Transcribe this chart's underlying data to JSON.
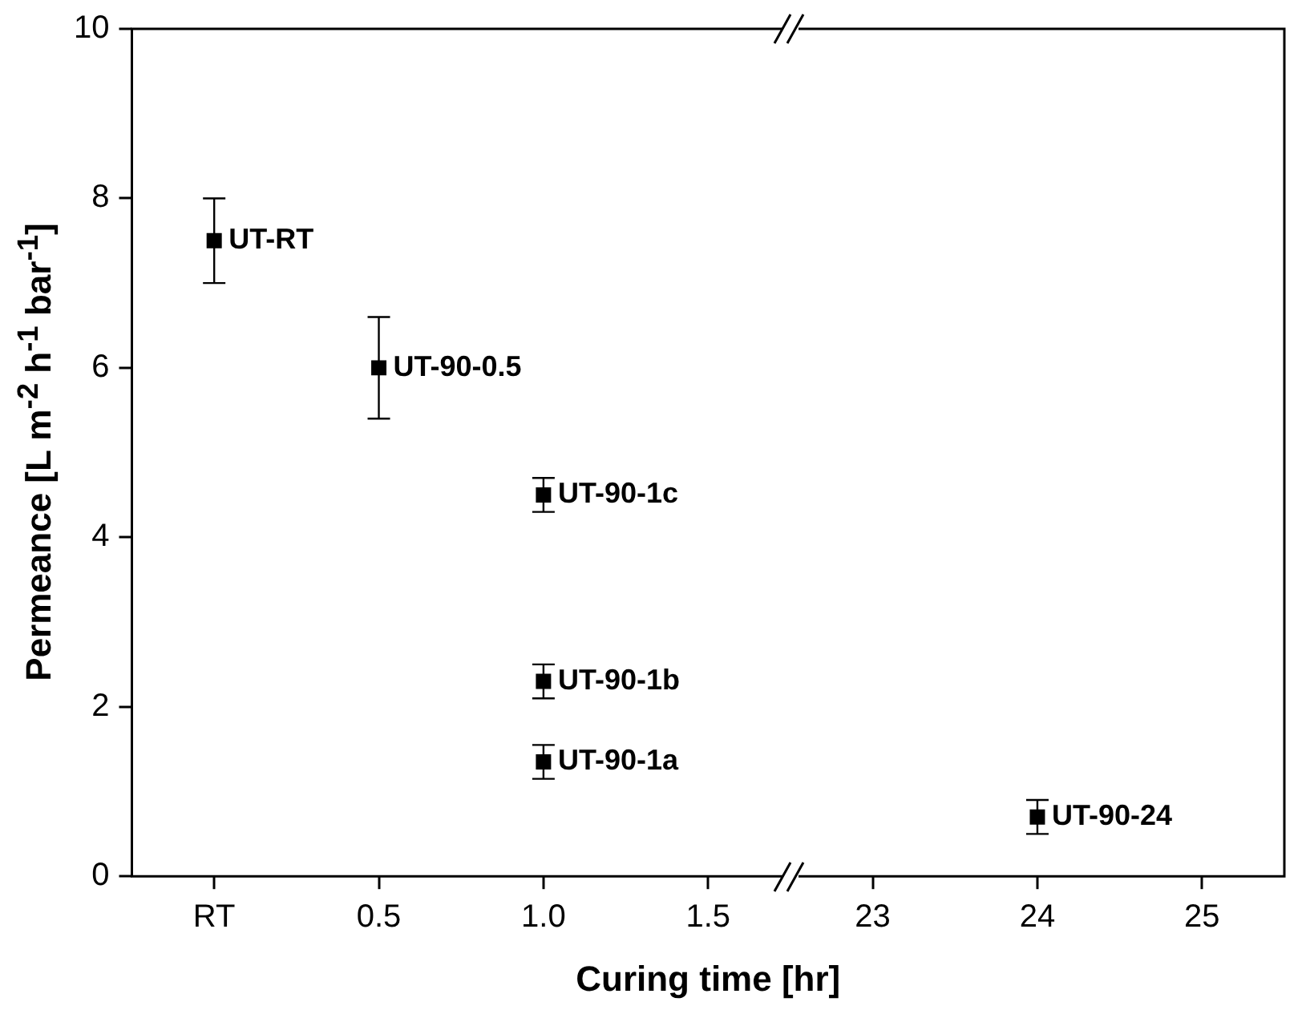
{
  "chart_data": {
    "type": "scatter",
    "xlabel": "Curing time [hr]",
    "ylabel": "Permeance [L m$^{-2}$ h$^{-1}$ bar$^{-1}$]",
    "categories": [
      "RT",
      "0.5",
      "1.0",
      "1.5",
      "23",
      "24",
      "25"
    ],
    "series": [
      {
        "color": "#000000",
        "x": [
          "RT",
          "0.5",
          "1.0",
          "1.0",
          "1.0",
          "24"
        ],
        "values": [
          7.5,
          6.0,
          4.5,
          2.3,
          1.35,
          0.7
        ],
        "errors": [
          0.5,
          0.6,
          0.2,
          0.2,
          0.2,
          0.2
        ]
      }
    ],
    "ylim": [
      0,
      10
    ],
    "yticks": [
      0,
      2,
      4,
      6,
      8,
      10
    ],
    "marker": "square",
    "annotations": [
      {
        "text": "UT-RT",
        "x": "RT",
        "y": 7.5
      },
      {
        "text": "UT-90-0.5",
        "x": "0.5",
        "y": 6.0
      },
      {
        "text": "UT-90-1c",
        "x": "1.0",
        "y": 4.5
      },
      {
        "text": "UT-90-1b",
        "x": "1.0",
        "y": 2.3
      },
      {
        "text": "UT-90-1a",
        "x": "1.0",
        "y": 1.35
      },
      {
        "text": "UT-90-24",
        "x": "24",
        "y": 0.7
      }
    ]
  }
}
